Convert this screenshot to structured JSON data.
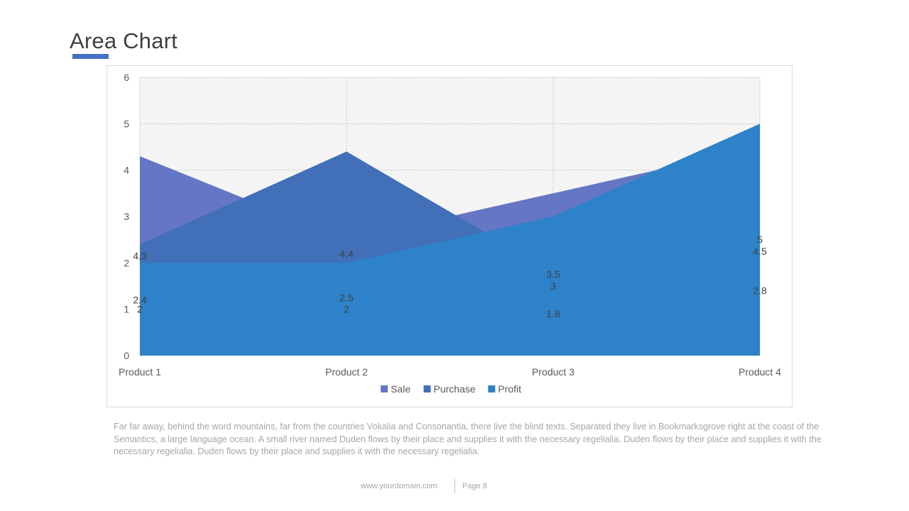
{
  "page": {
    "title": "Area Chart",
    "description": "Far far away, behind the word mountains, far from the countries Vokalia and Consonantia, there live the blind texts. Separated they live in Bookmarksgrove right at the coast of the Semantics, a large language ocean. A small river named Duden flows by their place and supplies it with the necessary regelialia. Duden flows by their place and supplies it with the necessary regelialia. Duden flows by their place and supplies it with the necessary regelialia.",
    "footer_url": "www.yourdomain.com",
    "footer_page": "Page 8",
    "accent_color": "#4472c4"
  },
  "chart_data": {
    "type": "area",
    "categories": [
      "Product 1",
      "Product 2",
      "Product 3",
      "Product 4"
    ],
    "series": [
      {
        "name": "Sale",
        "values": [
          4.3,
          2.5,
          3.5,
          4.5
        ],
        "color": "#6476c4"
      },
      {
        "name": "Purchase",
        "values": [
          2.4,
          4.4,
          1.8,
          2.8
        ],
        "color": "#416fb8"
      },
      {
        "name": "Profit",
        "values": [
          2,
          2,
          3,
          5
        ],
        "color": "#2d82c9"
      }
    ],
    "ylim": [
      0,
      6
    ],
    "yticks": [
      "0",
      "1",
      "2",
      "3",
      "4",
      "5",
      "6"
    ],
    "grid": true,
    "legend": "bottom",
    "plot_background": "hatched"
  }
}
